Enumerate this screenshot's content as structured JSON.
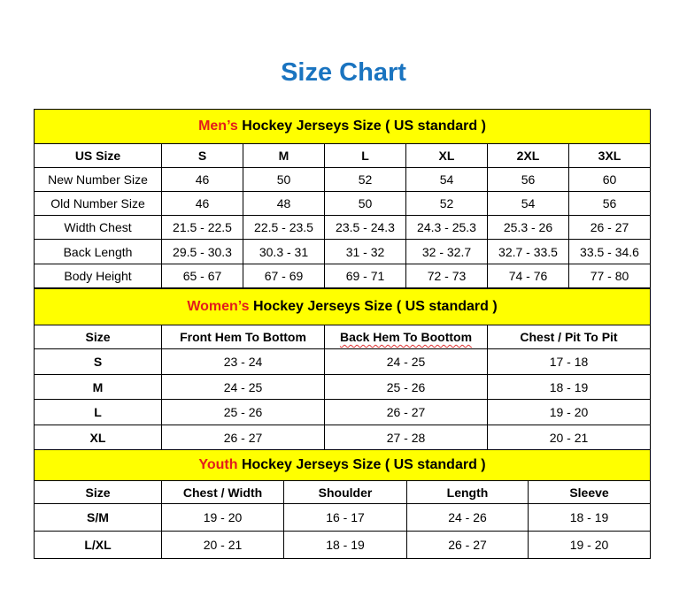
{
  "title": "Size Chart",
  "colors": {
    "title": "#1a74c0",
    "section_header_bg": "#ffff00",
    "highlight": "#e31c1c"
  },
  "men": {
    "highlight": "Men’s",
    "heading": " Hockey Jerseys Size ( US standard )",
    "columns": [
      "US Size",
      "S",
      "M",
      "L",
      "XL",
      "2XL",
      "3XL"
    ],
    "rows": [
      [
        "New Number Size",
        "46",
        "50",
        "52",
        "54",
        "56",
        "60"
      ],
      [
        "Old Number Size",
        "46",
        "48",
        "50",
        "52",
        "54",
        "56"
      ],
      [
        "Width Chest",
        "21.5 - 22.5",
        "22.5 - 23.5",
        "23.5 - 24.3",
        "24.3 - 25.3",
        "25.3 - 26",
        "26 - 27"
      ],
      [
        "Back Length",
        "29.5 - 30.3",
        "30.3 - 31",
        "31 - 32",
        "32 - 32.7",
        "32.7 - 33.5",
        "33.5 - 34.6"
      ],
      [
        "Body Height",
        "65 - 67",
        "67 - 69",
        "69 - 71",
        "72 - 73",
        "74 - 76",
        "77 - 80"
      ]
    ]
  },
  "women": {
    "highlight": "Women’s",
    "heading": " Hockey Jerseys Size ( US standard )",
    "columns": [
      "Size",
      "Front Hem To Bottom",
      "Back Hem To Boottom",
      "Chest / Pit To Pit"
    ],
    "rows": [
      [
        "S",
        "23 - 24",
        "24 - 25",
        "17 - 18"
      ],
      [
        "M",
        "24 - 25",
        "25 - 26",
        "18 - 19"
      ],
      [
        "L",
        "25 - 26",
        "26 - 27",
        "19 - 20"
      ],
      [
        "XL",
        "26 - 27",
        "27 - 28",
        "20 - 21"
      ]
    ]
  },
  "youth": {
    "highlight": "Youth",
    "heading": " Hockey Jerseys Size ( US standard )",
    "columns": [
      "Size",
      "Chest / Width",
      "Shoulder",
      "Length",
      "Sleeve"
    ],
    "rows": [
      [
        "S/M",
        "19 - 20",
        "16 - 17",
        "24 - 26",
        "18 - 19"
      ],
      [
        "L/XL",
        "20 - 21",
        "18 - 19",
        "26 - 27",
        "19 - 20"
      ]
    ]
  }
}
